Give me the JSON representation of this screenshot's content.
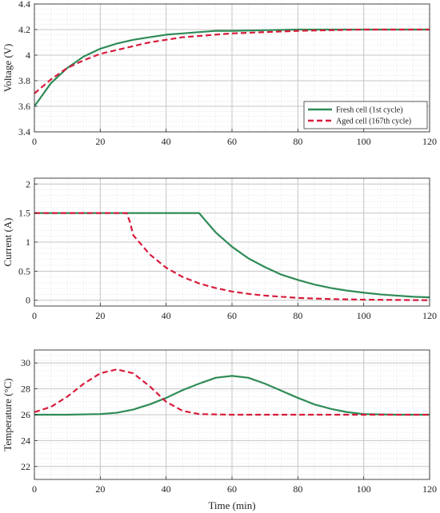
{
  "chart_data": [
    {
      "type": "line",
      "ylabel": "Voltage (V)",
      "xlabel": "",
      "xlim": [
        0,
        120
      ],
      "ylim": [
        3.4,
        4.4
      ],
      "xticks": [
        0,
        20,
        40,
        60,
        80,
        100,
        120
      ],
      "yticks": [
        3.4,
        3.6,
        3.8,
        4.0,
        4.2,
        4.4
      ],
      "ytick_labels": [
        "3.4",
        "3.6",
        "3.8",
        "4",
        "4.2",
        "4.4"
      ],
      "grid": true,
      "legend": "bottom-right",
      "series": [
        {
          "name": "Fresh cell (1st cycle)",
          "color": "#2e8b57",
          "style": "solid",
          "x": [
            0,
            5,
            10,
            15,
            20,
            25,
            30,
            35,
            40,
            45,
            50,
            55,
            60,
            70,
            80,
            90,
            100,
            110,
            120
          ],
          "y": [
            3.6,
            3.78,
            3.9,
            3.99,
            4.05,
            4.09,
            4.12,
            4.14,
            4.16,
            4.17,
            4.18,
            4.19,
            4.19,
            4.195,
            4.2,
            4.2,
            4.2,
            4.2,
            4.2
          ]
        },
        {
          "name": "Aged cell (167th cycle)",
          "color": "#d81b3c",
          "style": "dashed",
          "x": [
            0,
            5,
            10,
            15,
            20,
            25,
            30,
            35,
            40,
            45,
            50,
            55,
            60,
            70,
            80,
            90,
            100,
            110,
            120
          ],
          "y": [
            3.7,
            3.81,
            3.9,
            3.96,
            4.01,
            4.04,
            4.07,
            4.1,
            4.12,
            4.14,
            4.15,
            4.16,
            4.17,
            4.18,
            4.19,
            4.195,
            4.2,
            4.2,
            4.2
          ]
        }
      ]
    },
    {
      "type": "line",
      "ylabel": "Current (A)",
      "xlabel": "",
      "xlim": [
        0,
        120
      ],
      "ylim": [
        -0.1,
        2.1
      ],
      "xticks": [
        0,
        20,
        40,
        60,
        80,
        100,
        120
      ],
      "yticks": [
        0,
        0.5,
        1,
        1.5,
        2
      ],
      "ytick_labels": [
        "0",
        "0.5",
        "1",
        "1.5",
        "2"
      ],
      "grid": true,
      "series": [
        {
          "name": "Fresh cell (1st cycle)",
          "color": "#2e8b57",
          "style": "solid",
          "x": [
            0,
            10,
            20,
            30,
            40,
            50,
            55,
            60,
            65,
            70,
            75,
            80,
            85,
            90,
            95,
            100,
            105,
            110,
            115,
            120
          ],
          "y": [
            1.5,
            1.5,
            1.5,
            1.5,
            1.5,
            1.5,
            1.17,
            0.92,
            0.72,
            0.57,
            0.44,
            0.35,
            0.27,
            0.21,
            0.165,
            0.13,
            0.1,
            0.08,
            0.06,
            0.05
          ]
        },
        {
          "name": "Aged cell (167th cycle)",
          "color": "#d81b3c",
          "style": "dashed",
          "x": [
            0,
            10,
            20,
            28,
            29,
            30,
            35,
            40,
            45,
            50,
            55,
            60,
            65,
            70,
            80,
            90,
            100,
            110,
            120
          ],
          "y": [
            1.5,
            1.5,
            1.5,
            1.5,
            1.35,
            1.12,
            0.79,
            0.56,
            0.4,
            0.29,
            0.21,
            0.15,
            0.11,
            0.08,
            0.04,
            0.02,
            0.01,
            0.005,
            0.0
          ]
        }
      ]
    },
    {
      "type": "line",
      "ylabel": "Temperature (°C)",
      "xlabel": "Time (min)",
      "xlim": [
        0,
        120
      ],
      "ylim": [
        21,
        31
      ],
      "xticks": [
        0,
        20,
        40,
        60,
        80,
        100,
        120
      ],
      "yticks": [
        22,
        24,
        26,
        28,
        30
      ],
      "ytick_labels": [
        "22",
        "24",
        "26",
        "28",
        "30"
      ],
      "grid": true,
      "series": [
        {
          "name": "Fresh cell (1st cycle)",
          "color": "#2e8b57",
          "style": "solid",
          "x": [
            0,
            10,
            20,
            25,
            30,
            35,
            40,
            45,
            50,
            55,
            60,
            65,
            70,
            75,
            80,
            85,
            90,
            95,
            100,
            110,
            120
          ],
          "y": [
            26.0,
            26.0,
            26.05,
            26.15,
            26.4,
            26.8,
            27.3,
            27.9,
            28.4,
            28.85,
            29.0,
            28.85,
            28.4,
            27.85,
            27.3,
            26.8,
            26.45,
            26.2,
            26.05,
            26.0,
            26.0
          ]
        },
        {
          "name": "Aged cell (167th cycle)",
          "color": "#d81b3c",
          "style": "dashed",
          "x": [
            0,
            5,
            10,
            15,
            20,
            25,
            30,
            35,
            40,
            45,
            50,
            60,
            80,
            100,
            120
          ],
          "y": [
            26.2,
            26.6,
            27.4,
            28.4,
            29.2,
            29.5,
            29.2,
            28.2,
            27.0,
            26.3,
            26.05,
            26.0,
            26.0,
            26.0,
            26.0
          ]
        }
      ]
    }
  ]
}
